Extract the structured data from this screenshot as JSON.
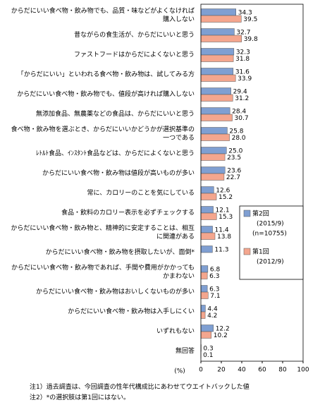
{
  "chart_data": {
    "type": "hbar",
    "categories": [
      "からだにいい食べ物・飲み物でも、品質・味などがよくなければ購入しない",
      "昔ながらの食生活が、からだにいいと思う",
      "ファストフードはからだによくないと思う",
      "「からだにいい」といわれる食べ物・飲み物は、試してみる方",
      "からだにいい食べ物・飲み物でも、値段が高ければ購入しない",
      "無添加食品、無農薬などの食品は、からだにいいと思う",
      "食べ物・飲み物を選ぶとき、からだにいいかどうかが選択基準の一つである",
      "ﾚﾄﾙﾄ食品、ｲﾝｽﾀﾝﾄ食品などは、からだによくないと思う",
      "からだにいい食べ物・飲み物は値段が高いものが多い",
      "常に、カロリーのことを気にしている",
      "食品・飲料のカロリー表示を必ずチェックする",
      "からだにいい食べ物・飲み物と、精神的に安定することは、相互に関連がある",
      "からだにいい食べ物・飲み物を摂取したいが、面倒*",
      "からだにいい食べ物・飲み物であれば、手間や費用がかかってもかまわない",
      "からだにいい食べ物・飲み物はおいしくないものが多い",
      "からだにいい食べ物・飲み物は入手しにくい",
      "いずれもない",
      "無回答"
    ],
    "series": [
      {
        "name": "第2回",
        "period": "(2015/9)",
        "sample": "(n=10755)",
        "color": "#7f9fd2",
        "values": [
          34.3,
          32.7,
          32.3,
          31.6,
          29.4,
          28.4,
          25.8,
          25.0,
          23.6,
          12.6,
          12.1,
          11.4,
          11.3,
          6.8,
          6.3,
          4.4,
          12.2,
          0.3
        ],
        "value_labels": [
          "34.3",
          "32.7",
          "32.3",
          "31.6",
          "29.4",
          "28.4",
          "25.8",
          "25.0",
          "23.6",
          "12.6",
          "12.1",
          "11.4",
          "11.3",
          "6.8",
          "6.3",
          "4.4",
          "12.2",
          "0.3"
        ]
      },
      {
        "name": "第1回",
        "period": "(2012/9)",
        "color": "#f4a68e",
        "values": [
          39.5,
          39.8,
          31.8,
          33.9,
          31.2,
          30.7,
          28.0,
          23.5,
          22.7,
          15.2,
          15.3,
          13.8,
          null,
          6.3,
          7.1,
          4.2,
          10.2,
          0.1
        ],
        "value_labels": [
          "39.5",
          "39.8",
          "31.8",
          "33.9",
          "31.2",
          "30.7",
          "28.0",
          "23.5",
          "22.7",
          "15.2",
          "15.3",
          "13.8",
          null,
          "6.3",
          "7.1",
          "4.2",
          "10.2",
          "0.1"
        ]
      }
    ],
    "xlim": [
      0,
      100
    ],
    "xticks": [
      0,
      20,
      40,
      60,
      80,
      100
    ],
    "xlabel": "(%)",
    "legend": "right",
    "notes": [
      "注1）過去調査は、今回調査の性年代構成比にあわせてウエイトバックした値",
      "注2）*の選択肢は第1回にはない。"
    ]
  }
}
